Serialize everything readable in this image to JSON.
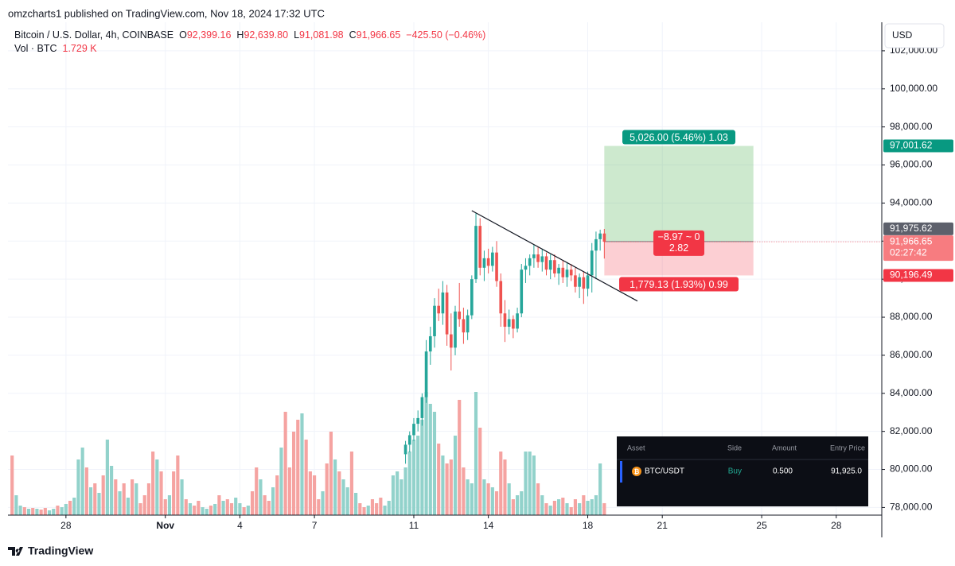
{
  "header": {
    "published": "omzcharts1 published on TradingView.com, Nov 18, 2024 17:32 UTC"
  },
  "chart_data": {
    "type": "candlestick",
    "title": "Bitcoin / U.S. Dollar, 4h, COINBASE",
    "legend": [
      {
        "key": "O",
        "value": "92,399.16"
      },
      {
        "key": "H",
        "value": "92,639.80"
      },
      {
        "key": "L",
        "value": "91,081.98"
      },
      {
        "key": "C",
        "value": "91,966.65"
      }
    ],
    "change": "−425.50 (−0.46%)",
    "volume_label": "Vol · BTC",
    "volume_value": "1.729 K",
    "currency": "USD",
    "xlim": [
      -1,
      210
    ],
    "xticks": [
      {
        "value": 13,
        "label": "28"
      },
      {
        "value": 37,
        "label": "Nov"
      },
      {
        "value": 55,
        "label": "4"
      },
      {
        "value": 73,
        "label": "7"
      },
      {
        "value": 97,
        "label": "11"
      },
      {
        "value": 115,
        "label": "14"
      },
      {
        "value": 139,
        "label": "18"
      },
      {
        "value": 157,
        "label": "21"
      },
      {
        "value": 181,
        "label": "25"
      },
      {
        "value": 199,
        "label": "28"
      }
    ],
    "ylim": [
      77600,
      103500
    ],
    "yticks": [
      {
        "value": 78000,
        "label": "78,000.00"
      },
      {
        "value": 80000,
        "label": "80,000.00"
      },
      {
        "value": 82000,
        "label": "82,000.00"
      },
      {
        "value": 84000,
        "label": "84,000.00"
      },
      {
        "value": 86000,
        "label": "86,000.00"
      },
      {
        "value": 88000,
        "label": "88,000.00"
      },
      {
        "value": 90000,
        "label": "90,000.00"
      },
      {
        "value": 92000,
        "label": "92,000.00"
      },
      {
        "value": 94000,
        "label": "94,000.00"
      },
      {
        "value": 96000,
        "label": "96,000.00"
      },
      {
        "value": 98000,
        "label": "98,000.00"
      },
      {
        "value": 100000,
        "label": "100,000.00"
      },
      {
        "value": 102000,
        "label": "102,000.00"
      }
    ],
    "grid": true,
    "up_color": "#26a69a",
    "down_color": "#ef5350",
    "open": [
      null,
      null,
      null,
      null,
      null,
      null,
      null,
      null,
      null,
      null,
      null,
      null,
      null,
      null,
      null,
      null,
      null,
      null,
      null,
      null,
      null,
      null,
      null,
      null,
      null,
      null,
      null,
      null,
      null,
      null,
      null,
      null,
      null,
      null,
      null,
      null,
      null,
      null,
      null,
      null,
      null,
      null,
      null,
      null,
      null,
      null,
      null,
      null,
      null,
      null,
      null,
      null,
      null,
      null,
      null,
      null,
      null,
      null,
      null,
      null,
      null,
      null,
      null,
      null,
      null,
      null,
      null,
      null,
      null,
      null,
      null,
      null,
      null,
      null,
      null,
      null,
      null,
      null,
      null,
      null,
      null,
      null,
      null,
      null,
      null,
      null,
      null,
      null,
      null,
      null,
      null,
      null,
      null,
      null,
      null,
      80800,
      81300,
      81800,
      82400,
      82700,
      83800,
      86200,
      87000,
      88600,
      88200,
      89300,
      87100,
      86400,
      88300,
      87900,
      87200,
      88100,
      90000,
      92800,
      90600,
      91100,
      90700,
      91400,
      89900,
      88200,
      87500,
      87900,
      87400,
      88200,
      90500,
      90700,
      91100,
      91300,
      90900,
      91200,
      90500,
      91000,
      90300,
      90600,
      90100,
      90500,
      90200,
      89600,
      90100,
      89500,
      90200,
      91500,
      92100,
      92399.16
    ],
    "high": [
      null,
      null,
      null,
      null,
      null,
      null,
      null,
      null,
      null,
      null,
      null,
      null,
      null,
      null,
      null,
      null,
      null,
      null,
      null,
      null,
      null,
      null,
      null,
      null,
      null,
      null,
      null,
      null,
      null,
      null,
      null,
      null,
      null,
      null,
      null,
      null,
      null,
      null,
      null,
      null,
      null,
      null,
      null,
      null,
      null,
      null,
      null,
      null,
      null,
      null,
      null,
      null,
      null,
      null,
      null,
      null,
      null,
      null,
      null,
      null,
      null,
      null,
      null,
      null,
      null,
      null,
      null,
      null,
      null,
      null,
      null,
      null,
      null,
      null,
      null,
      null,
      null,
      null,
      null,
      null,
      null,
      null,
      null,
      null,
      null,
      null,
      null,
      null,
      null,
      null,
      null,
      null,
      null,
      null,
      null,
      81500,
      82000,
      82700,
      83100,
      84000,
      86800,
      87500,
      89000,
      89500,
      89900,
      89700,
      88200,
      88600,
      89800,
      88500,
      88400,
      90200,
      93480,
      93200,
      91500,
      91600,
      91700,
      92000,
      90300,
      88900,
      88400,
      88100,
      88500,
      90800,
      91100,
      91300,
      91800,
      91700,
      91600,
      91400,
      91300,
      91300,
      90800,
      91000,
      90900,
      90800,
      90600,
      90300,
      90400,
      90400,
      91900,
      92500,
      92600,
      92639.8
    ],
    "low": [
      null,
      null,
      null,
      null,
      null,
      null,
      null,
      null,
      null,
      null,
      null,
      null,
      null,
      null,
      null,
      null,
      null,
      null,
      null,
      null,
      null,
      null,
      null,
      null,
      null,
      null,
      null,
      null,
      null,
      null,
      null,
      null,
      null,
      null,
      null,
      null,
      null,
      null,
      null,
      null,
      null,
      null,
      null,
      null,
      null,
      null,
      null,
      null,
      null,
      null,
      null,
      null,
      null,
      null,
      null,
      null,
      null,
      null,
      null,
      null,
      null,
      null,
      null,
      null,
      null,
      null,
      null,
      null,
      null,
      null,
      null,
      null,
      null,
      null,
      null,
      null,
      null,
      null,
      null,
      null,
      null,
      null,
      null,
      null,
      null,
      null,
      null,
      null,
      null,
      null,
      null,
      null,
      null,
      null,
      null,
      80300,
      80900,
      81500,
      82000,
      82300,
      83500,
      85500,
      86400,
      87800,
      87600,
      86500,
      85200,
      86000,
      87500,
      86600,
      86800,
      87900,
      89800,
      90200,
      89900,
      90300,
      90400,
      89600,
      87500,
      86700,
      87100,
      86900,
      87200,
      88000,
      89800,
      90200,
      90600,
      90600,
      90400,
      90200,
      90000,
      90100,
      89700,
      89800,
      89600,
      89900,
      89300,
      89000,
      88700,
      89100,
      89300,
      90000,
      91500,
      91081.98
    ],
    "close": [
      null,
      null,
      null,
      null,
      null,
      null,
      null,
      null,
      null,
      null,
      null,
      null,
      null,
      null,
      null,
      null,
      null,
      null,
      null,
      null,
      null,
      null,
      null,
      null,
      null,
      null,
      null,
      null,
      null,
      null,
      null,
      null,
      null,
      null,
      null,
      null,
      null,
      null,
      null,
      null,
      null,
      null,
      null,
      null,
      null,
      null,
      null,
      null,
      null,
      null,
      null,
      null,
      null,
      null,
      null,
      null,
      null,
      null,
      null,
      null,
      null,
      null,
      null,
      null,
      null,
      null,
      null,
      null,
      null,
      null,
      null,
      null,
      null,
      null,
      null,
      null,
      null,
      null,
      null,
      null,
      null,
      null,
      null,
      null,
      null,
      null,
      null,
      null,
      null,
      null,
      null,
      null,
      null,
      null,
      null,
      81300,
      81800,
      82400,
      82700,
      83800,
      86200,
      87000,
      88600,
      88200,
      89300,
      87100,
      86400,
      88300,
      87900,
      87200,
      88100,
      90000,
      92800,
      90600,
      91100,
      90700,
      91400,
      89900,
      88200,
      87500,
      87900,
      87400,
      88200,
      90500,
      90700,
      91100,
      91300,
      90900,
      91200,
      90500,
      91000,
      90300,
      90600,
      90100,
      90500,
      90200,
      89600,
      90100,
      89500,
      90200,
      91500,
      92100,
      92400,
      91966.65
    ],
    "volume": {
      "values": [
        8625,
        2875,
        1380,
        1150,
        920,
        1035,
        920,
        805,
        1035,
        690,
        920,
        1380,
        1150,
        1610,
        2070,
        2530,
        8050,
        9775,
        6900,
        4025,
        4600,
        3220,
        5750,
        10925,
        7130,
        5175,
        3450,
        4600,
        2530,
        5175,
        4600,
        1725,
        2875,
        4600,
        9200,
        8050,
        6325,
        2300,
        2875,
        6325,
        8625,
        5175,
        2300,
        1725,
        1380,
        2070,
        1150,
        920,
        1380,
        1610,
        2875,
        2070,
        2300,
        1725,
        2530,
        1725,
        1150,
        1380,
        3450,
        6900,
        5175,
        2875,
        2070,
        4025,
        5750,
        9775,
        14950,
        6900,
        12075,
        13800,
        14720,
        10925,
        6325,
        5750,
        2300,
        3450,
        7475,
        12075,
        8050,
        6325,
        5175,
        4025,
        9200,
        3220,
        1725,
        1150,
        1380,
        2300,
        1725,
        2530,
        1380,
        2070,
        5750,
        6325,
        5175,
        6900,
        9200,
        10925,
        11500,
        13800,
        17825,
        16100,
        14950,
        10350,
        8625,
        7475,
        8050,
        11500,
        16675,
        6900,
        5175,
        4600,
        17825,
        12650,
        5175,
        4600,
        4025,
        3450,
        9200,
        8050,
        4600,
        2300,
        2875,
        3450,
        9200,
        9200,
        8625,
        4600,
        2875,
        1725,
        1380,
        2070,
        2300,
        2530,
        1725,
        1150,
        2300,
        1725,
        2875,
        2070,
        2300,
        2875,
        7475,
        1729
      ],
      "colors": [
        "#f5a3a1",
        "#92d2cb",
        "#92d2cb",
        "#f5a3a1",
        "#92d2cb",
        "#f5a3a1",
        "#92d2cb",
        "#f5a3a1",
        "#f5a3a1",
        "#92d2cb",
        "#92d2cb",
        "#f5a3a1",
        "#92d2cb",
        "#92d2cb",
        "#f5a3a1",
        "#92d2cb",
        "#92d2cb",
        "#92d2cb",
        "#f5a3a1",
        "#92d2cb",
        "#f5a3a1",
        "#92d2cb",
        "#f5a3a1",
        "#92d2cb",
        "#92d2cb",
        "#f5a3a1",
        "#92d2cb",
        "#f5a3a1",
        "#92d2cb",
        "#f5a3a1",
        "#92d2cb",
        "#f5a3a1",
        "#f5a3a1",
        "#f5a3a1",
        "#f5a3a1",
        "#92d2cb",
        "#f5a3a1",
        "#f5a3a1",
        "#92d2cb",
        "#f5a3a1",
        "#f5a3a1",
        "#92d2cb",
        "#f5a3a1",
        "#92d2cb",
        "#f5a3a1",
        "#f5a3a1",
        "#92d2cb",
        "#92d2cb",
        "#f5a3a1",
        "#92d2cb",
        "#f5a3a1",
        "#92d2cb",
        "#f5a3a1",
        "#f5a3a1",
        "#92d2cb",
        "#92d2cb",
        "#f5a3a1",
        "#92d2cb",
        "#f5a3a1",
        "#f5a3a1",
        "#92d2cb",
        "#f5a3a1",
        "#f5a3a1",
        "#92d2cb",
        "#f5a3a1",
        "#92d2cb",
        "#f5a3a1",
        "#f5a3a1",
        "#f5a3a1",
        "#f5a3a1",
        "#92d2cb",
        "#f5a3a1",
        "#f5a3a1",
        "#f5a3a1",
        "#f5a3a1",
        "#92d2cb",
        "#f5a3a1",
        "#f5a3a1",
        "#92d2cb",
        "#f5a3a1",
        "#92d2cb",
        "#92d2cb",
        "#f5a3a1",
        "#92d2cb",
        "#f5a3a1",
        "#f5a3a1",
        "#92d2cb",
        "#f5a3a1",
        "#f5a3a1",
        "#f5a3a1",
        "#92d2cb",
        "#92d2cb",
        "#92d2cb",
        "#92d2cb",
        "#92d2cb",
        "#92d2cb",
        "#92d2cb",
        "#92d2cb",
        "#92d2cb",
        "#92d2cb",
        "#92d2cb",
        "#92d2cb",
        "#92d2cb",
        "#f5a3a1",
        "#92d2cb",
        "#f5a3a1",
        "#f5a3a1",
        "#92d2cb",
        "#f5a3a1",
        "#f5a3a1",
        "#92d2cb",
        "#92d2cb",
        "#92d2cb",
        "#f5a3a1",
        "#92d2cb",
        "#f5a3a1",
        "#92d2cb",
        "#f5a3a1",
        "#f5a3a1",
        "#f5a3a1",
        "#92d2cb",
        "#f5a3a1",
        "#92d2cb",
        "#92d2cb",
        "#92d2cb",
        "#92d2cb",
        "#92d2cb",
        "#f5a3a1",
        "#92d2cb",
        "#f5a3a1",
        "#92d2cb",
        "#f5a3a1",
        "#92d2cb",
        "#f5a3a1",
        "#92d2cb",
        "#f5a3a1",
        "#f5a3a1",
        "#92d2cb",
        "#f5a3a1",
        "#92d2cb",
        "#92d2cb",
        "#92d2cb",
        "#92d2cb",
        "#f5a3a1"
      ]
    },
    "trendline": {
      "x": [
        111,
        151
      ],
      "y": [
        93600,
        88850
      ]
    },
    "position": {
      "x": [
        143,
        179
      ],
      "target": {
        "value": 97001.62,
        "label": "97,001.62"
      },
      "entry": {
        "value": 91975.62,
        "label": "91,975.62"
      },
      "stop": {
        "value": 90196.49,
        "label": "90,196.49"
      },
      "target_text": "5,026.00 (5.46%) 1.03",
      "pnl_text": [
        "−8.97 ~ 0",
        "2.82"
      ],
      "stop_text": "1,779.13 (1.93%) 0.99"
    },
    "last_price": {
      "value": 91966.65,
      "label": "91,966.65",
      "countdown": "02:27:42"
    }
  },
  "table": {
    "header": [
      "Asset",
      "Side",
      "Amount",
      "Entry Price"
    ],
    "rows": [
      [
        "BTC/USDT",
        "Buy",
        "0.500",
        "91,925.0"
      ]
    ]
  },
  "footer": {
    "brand": "TradingView"
  }
}
